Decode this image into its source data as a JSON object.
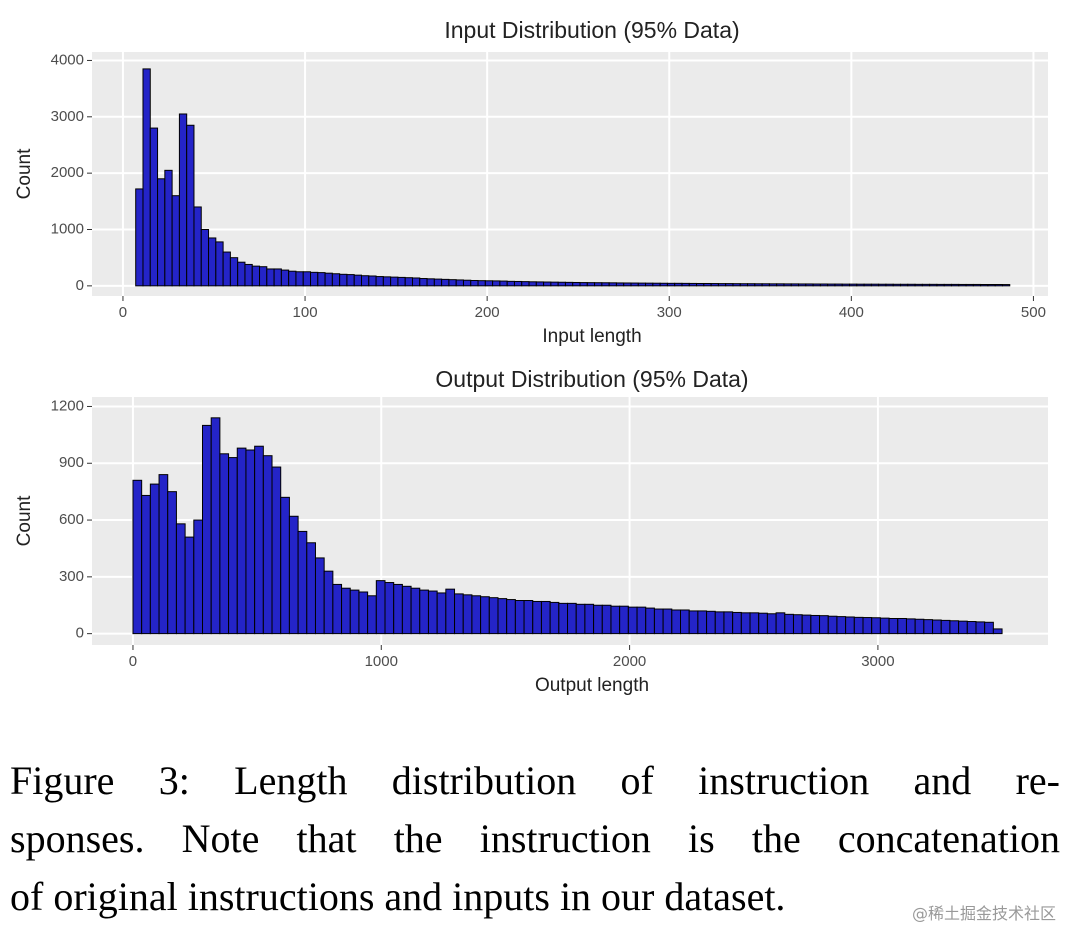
{
  "chart_data": [
    {
      "type": "histogram",
      "title": "Input Distribution (95% Data)",
      "x_label": "Input length",
      "y_label": "Count",
      "color": "#2424c8",
      "edge_color": "#000000",
      "grid": true,
      "bins": [
        7,
        11,
        15,
        19,
        23,
        27,
        31,
        35,
        39,
        43,
        47,
        51,
        55,
        59,
        63,
        67,
        71,
        75,
        79,
        83,
        87,
        91,
        95,
        99,
        103,
        107,
        111,
        115,
        119,
        123,
        127,
        131,
        135,
        139,
        143,
        147,
        151,
        155,
        159,
        163,
        167,
        171,
        175,
        179,
        183,
        187,
        191,
        195,
        199,
        203,
        207,
        211,
        215,
        219,
        223,
        227,
        231,
        235,
        239,
        243,
        247,
        251,
        255,
        259,
        263,
        267,
        271,
        275,
        279,
        283,
        287,
        291,
        295,
        299,
        303,
        307,
        311,
        315,
        319,
        323,
        327,
        331,
        335,
        339,
        343,
        347,
        351,
        355,
        359,
        363,
        367,
        371,
        375,
        379,
        383,
        387,
        391,
        395,
        399,
        403,
        407,
        411,
        415,
        419,
        423,
        427,
        431,
        435,
        439,
        443,
        447,
        451,
        455,
        459,
        463,
        467,
        471,
        475,
        479,
        483,
        487
      ],
      "values": [
        1720,
        3850,
        2800,
        1900,
        2050,
        1600,
        3050,
        2850,
        1400,
        1000,
        850,
        780,
        600,
        500,
        420,
        380,
        350,
        340,
        300,
        300,
        280,
        260,
        250,
        250,
        240,
        235,
        225,
        215,
        205,
        200,
        190,
        180,
        175,
        165,
        160,
        155,
        150,
        145,
        140,
        130,
        125,
        120,
        115,
        110,
        105,
        100,
        95,
        92,
        90,
        88,
        85,
        80,
        78,
        75,
        72,
        70,
        68,
        66,
        64,
        62,
        60,
        58,
        57,
        56,
        55,
        54,
        52,
        51,
        50,
        49,
        48,
        47,
        46,
        45,
        45,
        44,
        43,
        42,
        42,
        41,
        40,
        40,
        39,
        38,
        38,
        37,
        37,
        36,
        36,
        35,
        35,
        34,
        34,
        33,
        33,
        32,
        32,
        31,
        31,
        30,
        30,
        30,
        29,
        29,
        28,
        28,
        28,
        27,
        27,
        27,
        26,
        26,
        26,
        25,
        25,
        25,
        24,
        24,
        24,
        23
      ],
      "xlim": [
        -17,
        508
      ],
      "xticks": [
        0,
        100,
        200,
        300,
        400,
        500
      ],
      "ylim": [
        -180,
        4150
      ],
      "yticks": [
        0,
        1000,
        2000,
        3000,
        4000
      ]
    },
    {
      "type": "histogram",
      "title": "Output Distribution (95% Data)",
      "x_label": "Output length",
      "y_label": "Count",
      "color": "#2424c8",
      "edge_color": "#000000",
      "grid": true,
      "bins": [
        0,
        35,
        70,
        105,
        140,
        175,
        210,
        245,
        280,
        315,
        350,
        385,
        420,
        455,
        490,
        525,
        560,
        595,
        630,
        665,
        700,
        735,
        770,
        805,
        840,
        875,
        910,
        945,
        980,
        1015,
        1050,
        1085,
        1120,
        1155,
        1190,
        1225,
        1260,
        1295,
        1330,
        1365,
        1400,
        1435,
        1470,
        1505,
        1540,
        1575,
        1610,
        1645,
        1680,
        1715,
        1750,
        1785,
        1820,
        1855,
        1890,
        1925,
        1960,
        1995,
        2030,
        2065,
        2100,
        2135,
        2170,
        2205,
        2240,
        2275,
        2310,
        2345,
        2380,
        2415,
        2450,
        2485,
        2520,
        2555,
        2590,
        2625,
        2660,
        2695,
        2730,
        2765,
        2800,
        2835,
        2870,
        2905,
        2940,
        2975,
        3010,
        3045,
        3080,
        3115,
        3150,
        3185,
        3220,
        3255,
        3290,
        3325,
        3360,
        3395,
        3430,
        3465,
        3500
      ],
      "values": [
        810,
        730,
        790,
        840,
        750,
        580,
        510,
        600,
        1100,
        1140,
        950,
        930,
        980,
        970,
        990,
        940,
        880,
        720,
        620,
        540,
        480,
        400,
        330,
        260,
        240,
        230,
        220,
        200,
        280,
        270,
        260,
        250,
        240,
        230,
        225,
        215,
        235,
        210,
        205,
        200,
        195,
        190,
        185,
        180,
        175,
        175,
        170,
        170,
        165,
        160,
        160,
        155,
        155,
        150,
        150,
        145,
        145,
        140,
        140,
        135,
        130,
        130,
        125,
        125,
        120,
        120,
        118,
        115,
        115,
        112,
        110,
        110,
        108,
        105,
        110,
        102,
        100,
        98,
        96,
        95,
        92,
        90,
        88,
        86,
        85,
        84,
        82,
        80,
        80,
        78,
        76,
        74,
        72,
        70,
        68,
        66,
        64,
        62,
        60,
        25
      ],
      "xlim": [
        -165,
        3685
      ],
      "xticks": [
        0,
        1000,
        2000,
        3000
      ],
      "ylim": [
        -60,
        1250
      ],
      "yticks": [
        0,
        300,
        600,
        900,
        1200
      ]
    }
  ],
  "caption": [
    "Figure 3: Length distribution of instruction and re-",
    "sponses. Note that the instruction is the concatenation",
    "of original instructions and inputs in our dataset."
  ],
  "watermark": "@稀土掘金技术社区"
}
